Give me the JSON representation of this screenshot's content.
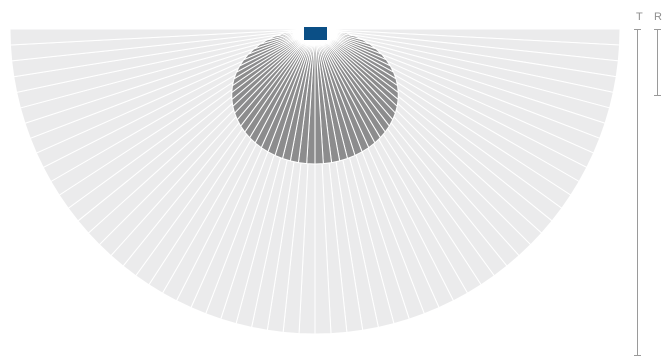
{
  "legend": {
    "t_label": "T",
    "r_label": "R"
  },
  "diagram": {
    "segment_count": 60,
    "colors": {
      "outer_fan": "#ebebec",
      "inner_fan": "#8c8c8d",
      "divider": "#ffffff",
      "source_block": "#0b4f86",
      "scale_line": "#9a9a9a"
    }
  }
}
